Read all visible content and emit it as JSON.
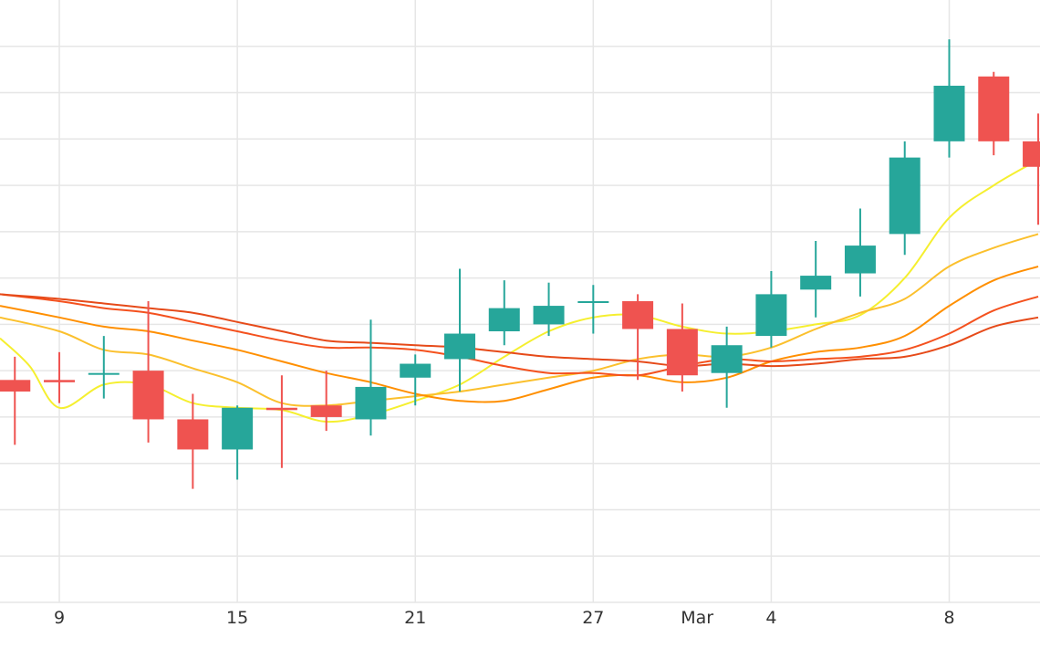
{
  "chart_data": {
    "type": "candlestick",
    "title": "",
    "xlabel": "",
    "ylabel": "",
    "x_ticks": [
      {
        "day": 9,
        "label": "9"
      },
      {
        "day": 15,
        "label": "15"
      },
      {
        "day": 21,
        "label": "21"
      },
      {
        "day": 27,
        "label": "27"
      },
      {
        "day": 30.5,
        "label": "Mar"
      },
      {
        "day": 33,
        "label": "4"
      },
      {
        "day": 39,
        "label": "8"
      }
    ],
    "xlim": [
      7,
      42.06
    ],
    "ylim": [
      0,
      13
    ],
    "y_gridlines": [
      0,
      1,
      2,
      3,
      4,
      5,
      6,
      7,
      8,
      9,
      10,
      11,
      12
    ],
    "grid": true,
    "legend": "none",
    "colors": {
      "up": "#26a69a",
      "down": "#ef5350",
      "grid": "#e6e6e6"
    },
    "candles": [
      {
        "day": 7.5,
        "open": 4.8,
        "high": 5.3,
        "low": 3.4,
        "close": 4.55
      },
      {
        "day": 9,
        "open": 4.8,
        "high": 5.4,
        "low": 4.3,
        "close": 4.75
      },
      {
        "day": 10.5,
        "open": 4.95,
        "high": 5.75,
        "low": 4.4,
        "close": 4.95
      },
      {
        "day": 12,
        "open": 5.0,
        "high": 6.5,
        "low": 3.45,
        "close": 3.95
      },
      {
        "day": 13.5,
        "open": 3.95,
        "high": 4.5,
        "low": 2.45,
        "close": 3.3
      },
      {
        "day": 15,
        "open": 3.3,
        "high": 4.25,
        "low": 2.65,
        "close": 4.2
      },
      {
        "day": 16.5,
        "open": 4.2,
        "high": 4.9,
        "low": 2.9,
        "close": 4.15
      },
      {
        "day": 18,
        "open": 4.25,
        "high": 5.0,
        "low": 3.7,
        "close": 4.0
      },
      {
        "day": 19.5,
        "open": 3.95,
        "high": 6.1,
        "low": 3.6,
        "close": 4.65
      },
      {
        "day": 21,
        "open": 4.85,
        "high": 5.35,
        "low": 4.25,
        "close": 5.15
      },
      {
        "day": 22.5,
        "open": 5.25,
        "high": 7.2,
        "low": 4.55,
        "close": 5.8
      },
      {
        "day": 24,
        "open": 5.85,
        "high": 6.95,
        "low": 5.55,
        "close": 6.35
      },
      {
        "day": 25.5,
        "open": 6.0,
        "high": 6.9,
        "low": 5.75,
        "close": 6.4
      },
      {
        "day": 27,
        "open": 6.5,
        "high": 6.85,
        "low": 5.8,
        "close": 6.5
      },
      {
        "day": 28.5,
        "open": 6.5,
        "high": 6.65,
        "low": 4.8,
        "close": 5.9
      },
      {
        "day": 30,
        "open": 5.9,
        "high": 6.45,
        "low": 4.55,
        "close": 4.9
      },
      {
        "day": 31.5,
        "open": 4.95,
        "high": 5.95,
        "low": 4.2,
        "close": 5.55
      },
      {
        "day": 33,
        "open": 5.75,
        "high": 7.15,
        "low": 5.5,
        "close": 6.65
      },
      {
        "day": 34.5,
        "open": 6.75,
        "high": 7.8,
        "low": 6.15,
        "close": 7.05
      },
      {
        "day": 36,
        "open": 7.1,
        "high": 8.5,
        "low": 6.6,
        "close": 7.7
      },
      {
        "day": 37.5,
        "open": 7.95,
        "high": 9.95,
        "low": 7.5,
        "close": 9.6
      },
      {
        "day": 39,
        "open": 9.95,
        "high": 12.15,
        "low": 9.6,
        "close": 11.15
      },
      {
        "day": 40.5,
        "open": 11.35,
        "high": 11.45,
        "low": 9.65,
        "close": 9.95
      },
      {
        "day": 42,
        "open": 9.95,
        "high": 10.55,
        "low": 8.15,
        "close": 9.4
      }
    ],
    "moving_averages": [
      {
        "color": "#f5ef2f",
        "points": [
          [
            7,
            5.7
          ],
          [
            8,
            5.1
          ],
          [
            9,
            4.2
          ],
          [
            10.5,
            4.7
          ],
          [
            12,
            4.7
          ],
          [
            13.5,
            4.3
          ],
          [
            15,
            4.2
          ],
          [
            16.5,
            4.15
          ],
          [
            18,
            3.9
          ],
          [
            19.5,
            4.05
          ],
          [
            21,
            4.35
          ],
          [
            22.5,
            4.7
          ],
          [
            24,
            5.3
          ],
          [
            25.5,
            5.85
          ],
          [
            27,
            6.15
          ],
          [
            28.5,
            6.2
          ],
          [
            30,
            5.95
          ],
          [
            31.5,
            5.8
          ],
          [
            33,
            5.85
          ],
          [
            34.5,
            6.0
          ],
          [
            36,
            6.2
          ],
          [
            37.5,
            7.0
          ],
          [
            39,
            8.3
          ],
          [
            40.5,
            9.0
          ],
          [
            42,
            9.55
          ]
        ]
      },
      {
        "color": "#fbc02d",
        "points": [
          [
            7,
            6.15
          ],
          [
            9,
            5.85
          ],
          [
            10.5,
            5.45
          ],
          [
            12,
            5.35
          ],
          [
            13.5,
            5.05
          ],
          [
            15,
            4.75
          ],
          [
            16.5,
            4.3
          ],
          [
            18,
            4.25
          ],
          [
            19.5,
            4.35
          ],
          [
            21,
            4.45
          ],
          [
            22.5,
            4.55
          ],
          [
            24,
            4.7
          ],
          [
            25.5,
            4.85
          ],
          [
            27,
            5.0
          ],
          [
            28.5,
            5.25
          ],
          [
            30,
            5.35
          ],
          [
            31.5,
            5.3
          ],
          [
            33,
            5.5
          ],
          [
            34.5,
            5.9
          ],
          [
            36,
            6.25
          ],
          [
            37.5,
            6.55
          ],
          [
            39,
            7.25
          ],
          [
            40.5,
            7.65
          ],
          [
            42,
            7.95
          ]
        ]
      },
      {
        "color": "#ff8f00",
        "points": [
          [
            7,
            6.4
          ],
          [
            9,
            6.15
          ],
          [
            10.5,
            5.95
          ],
          [
            12,
            5.85
          ],
          [
            13.5,
            5.65
          ],
          [
            15,
            5.45
          ],
          [
            16.5,
            5.2
          ],
          [
            18,
            4.95
          ],
          [
            19.5,
            4.75
          ],
          [
            21,
            4.5
          ],
          [
            22.5,
            4.35
          ],
          [
            24,
            4.35
          ],
          [
            25.5,
            4.6
          ],
          [
            27,
            4.85
          ],
          [
            28.5,
            4.9
          ],
          [
            30,
            4.75
          ],
          [
            31.5,
            4.85
          ],
          [
            33,
            5.2
          ],
          [
            34.5,
            5.4
          ],
          [
            36,
            5.5
          ],
          [
            37.5,
            5.75
          ],
          [
            39,
            6.4
          ],
          [
            40.5,
            6.95
          ],
          [
            42,
            7.25
          ]
        ]
      },
      {
        "color": "#f4511e",
        "points": [
          [
            7,
            6.65
          ],
          [
            9,
            6.5
          ],
          [
            10.5,
            6.35
          ],
          [
            12,
            6.25
          ],
          [
            13.5,
            6.05
          ],
          [
            15,
            5.85
          ],
          [
            16.5,
            5.65
          ],
          [
            18,
            5.5
          ],
          [
            19.5,
            5.5
          ],
          [
            21,
            5.45
          ],
          [
            22.5,
            5.3
          ],
          [
            24,
            5.1
          ],
          [
            25.5,
            4.95
          ],
          [
            27,
            4.95
          ],
          [
            28.5,
            4.9
          ],
          [
            30,
            5.1
          ],
          [
            31.5,
            5.25
          ],
          [
            33,
            5.2
          ],
          [
            34.5,
            5.25
          ],
          [
            36,
            5.3
          ],
          [
            37.5,
            5.45
          ],
          [
            39,
            5.8
          ],
          [
            40.5,
            6.3
          ],
          [
            42,
            6.6
          ]
        ]
      },
      {
        "color": "#e64a19",
        "points": [
          [
            7,
            6.65
          ],
          [
            9,
            6.55
          ],
          [
            10.5,
            6.45
          ],
          [
            12,
            6.35
          ],
          [
            13.5,
            6.25
          ],
          [
            15,
            6.05
          ],
          [
            16.5,
            5.85
          ],
          [
            18,
            5.65
          ],
          [
            19.5,
            5.6
          ],
          [
            21,
            5.55
          ],
          [
            22.5,
            5.5
          ],
          [
            24,
            5.4
          ],
          [
            25.5,
            5.3
          ],
          [
            27,
            5.25
          ],
          [
            28.5,
            5.2
          ],
          [
            30,
            5.1
          ],
          [
            31.5,
            5.15
          ],
          [
            33,
            5.1
          ],
          [
            34.5,
            5.15
          ],
          [
            36,
            5.25
          ],
          [
            37.5,
            5.3
          ],
          [
            39,
            5.55
          ],
          [
            40.5,
            5.95
          ],
          [
            42,
            6.15
          ]
        ]
      }
    ]
  }
}
